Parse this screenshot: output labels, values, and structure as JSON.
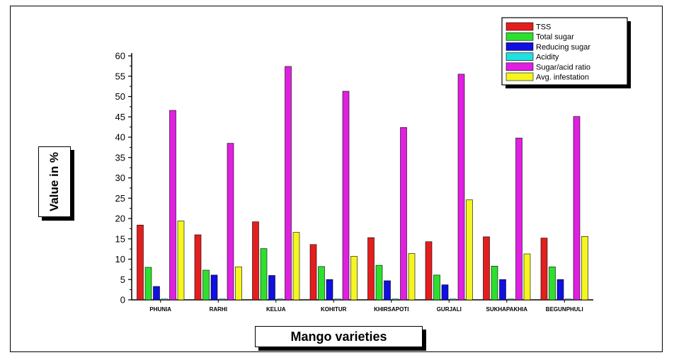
{
  "chart_data": {
    "type": "bar",
    "xlabel": "Mango varieties",
    "ylabel": "Value in %",
    "ylim": [
      0,
      60
    ],
    "yticks": [
      0,
      5,
      10,
      15,
      20,
      25,
      30,
      35,
      40,
      45,
      50,
      55,
      60
    ],
    "legend_position": "top-right",
    "grid": false,
    "categories": [
      "PHUNIA",
      "RARHI",
      "KELUA",
      "KOHITUR",
      "KHIRSAPOTI",
      "GURJALI",
      "SUKHAPAKHIA",
      "BEGUNPHULI"
    ],
    "series": [
      {
        "name": "TSS",
        "color": "#e41e1e",
        "values": [
          18.4,
          16.0,
          19.2,
          13.6,
          15.3,
          14.3,
          15.5,
          15.2
        ]
      },
      {
        "name": "Total sugar",
        "color": "#2ee02e",
        "values": [
          8.0,
          7.3,
          12.6,
          8.2,
          8.5,
          6.1,
          8.3,
          8.1
        ]
      },
      {
        "name": "Reducing sugar",
        "color": "#1010e0",
        "values": [
          3.3,
          6.1,
          6.0,
          5.0,
          4.7,
          3.7,
          5.0,
          5.0
        ]
      },
      {
        "name": "Acidity",
        "color": "#20e0e0",
        "values": [
          0.2,
          0.2,
          0.2,
          0.2,
          0.2,
          0.2,
          0.2,
          0.2
        ]
      },
      {
        "name": "Sugar/acid ratio",
        "color": "#e020e0",
        "values": [
          46.6,
          38.5,
          57.4,
          51.3,
          42.4,
          55.5,
          39.8,
          45.1
        ]
      },
      {
        "name": "Avg. infestation",
        "color": "#f5f520",
        "values": [
          19.4,
          8.1,
          16.6,
          10.7,
          11.4,
          24.6,
          11.3,
          15.6
        ]
      }
    ]
  }
}
